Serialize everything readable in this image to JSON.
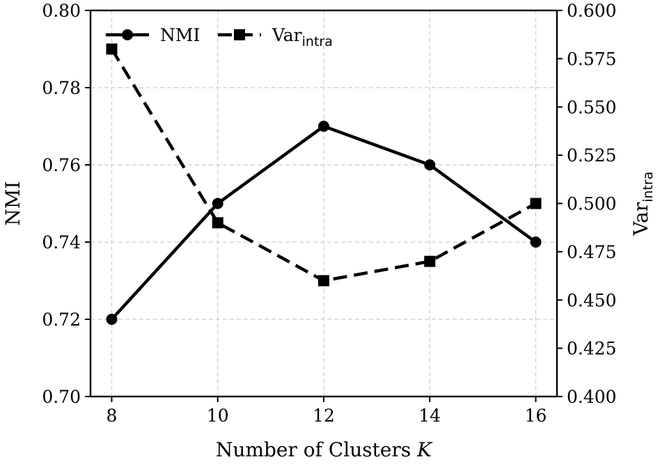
{
  "chart_data": {
    "type": "line",
    "x": [
      8,
      10,
      12,
      14,
      16
    ],
    "xlabel": "Number of Clusters",
    "xlabel_var": "K",
    "xticks": [
      "8",
      "10",
      "12",
      "14",
      "16"
    ],
    "xlim": [
      7.6,
      16.4
    ],
    "grid": true,
    "legend_position": "upper-left",
    "left_axis": {
      "label": "NMI",
      "ylim": [
        0.7,
        0.8
      ],
      "ticks": [
        "0.70",
        "0.72",
        "0.74",
        "0.76",
        "0.78",
        "0.80"
      ]
    },
    "right_axis": {
      "label": "Var",
      "label_sub": "intra",
      "ylim": [
        0.4,
        0.6
      ],
      "ticks": [
        "0.400",
        "0.425",
        "0.450",
        "0.475",
        "0.500",
        "0.525",
        "0.550",
        "0.575",
        "0.600"
      ]
    },
    "series": [
      {
        "name": "NMI",
        "axis": "left",
        "style": "solid",
        "marker": "circle",
        "values": [
          0.72,
          0.75,
          0.77,
          0.76,
          0.74
        ]
      },
      {
        "name": "Var",
        "name_sub": "intra",
        "axis": "right",
        "style": "dashed",
        "marker": "square",
        "values": [
          0.58,
          0.49,
          0.46,
          0.47,
          0.5
        ]
      }
    ],
    "colors": {
      "line": "#000000",
      "grid": "#cccccc",
      "background": "#ffffff"
    }
  }
}
